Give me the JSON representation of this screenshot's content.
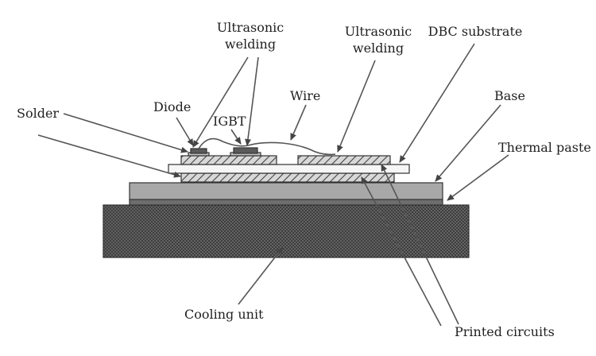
{
  "labels": {
    "ultrasonic_welding_left_line1": "Ultrasonic",
    "ultrasonic_welding_left_line2": "welding",
    "ultrasonic_welding_right_line1": "Ultrasonic",
    "ultrasonic_welding_right_line2": "welding",
    "dbc_substrate": "DBC substrate",
    "solder": "Solder",
    "diode": "Diode",
    "wire": "Wire",
    "igbt": "IGBT",
    "base": "Base",
    "thermal_paste": "Thermal paste",
    "cooling_unit": "Cooling unit",
    "printed_circuits": "Printed circuits"
  }
}
